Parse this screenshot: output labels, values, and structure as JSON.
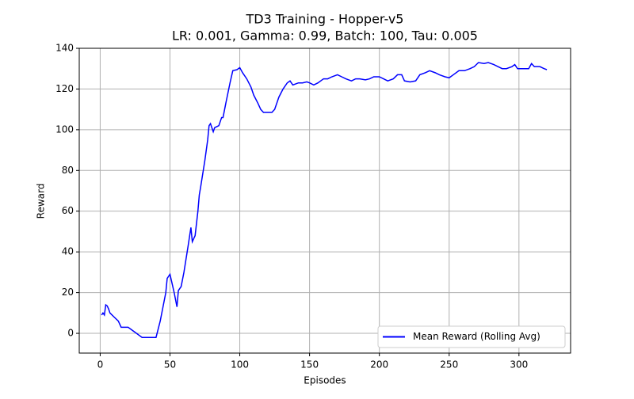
{
  "chart_data": {
    "type": "line",
    "title": "TD3 Training - Hopper-v5",
    "subtitle": "LR: 0.001, Gamma: 0.99, Batch: 100, Tau: 0.005",
    "x_label": "Episodes",
    "y_label": "Reward",
    "x": [
      1,
      2,
      3,
      4,
      5,
      6,
      7,
      10,
      13,
      15,
      20,
      25,
      30,
      35,
      40,
      43,
      47,
      48,
      50,
      53,
      55,
      56,
      58,
      60,
      63,
      65,
      66,
      68,
      70,
      71,
      72,
      75,
      77,
      78,
      79,
      81,
      82,
      85,
      87,
      88,
      90,
      93,
      95,
      98,
      100,
      102,
      105,
      108,
      110,
      113,
      115,
      117,
      120,
      123,
      125,
      128,
      131,
      134,
      136,
      138,
      142,
      145,
      148,
      150,
      153,
      156,
      160,
      163,
      166,
      170,
      173,
      176,
      180,
      183,
      186,
      190,
      193,
      196,
      200,
      203,
      206,
      210,
      213,
      216,
      218,
      222,
      226,
      229,
      233,
      236,
      240,
      243,
      247,
      250,
      253,
      257,
      261,
      265,
      268,
      271,
      275,
      278,
      282,
      285,
      288,
      291,
      295,
      297,
      299,
      303,
      307,
      309,
      311,
      315,
      318,
      320
    ],
    "series": [
      {
        "name": "Mean Reward (Rolling Avg)",
        "color": "#0000ff",
        "values": [
          9,
          10,
          9,
          14,
          13.5,
          12,
          10,
          8,
          6,
          3,
          3,
          0.5,
          -2,
          -2,
          -2,
          6,
          20,
          27,
          29,
          20,
          13,
          21,
          23,
          30,
          43,
          52,
          45,
          48,
          60,
          68,
          72,
          85,
          95,
          102,
          103,
          99,
          101,
          102,
          106,
          106,
          113,
          123,
          129,
          129.5,
          130.5,
          128,
          125,
          121,
          117,
          113,
          110,
          108.5,
          108.5,
          108.5,
          110,
          116,
          120,
          123,
          124,
          122,
          123,
          123,
          123.5,
          123,
          122,
          123,
          125,
          125,
          126,
          127,
          126,
          125,
          124,
          125,
          125,
          124.5,
          125,
          126,
          126,
          125,
          124,
          125,
          127,
          127,
          124,
          123.5,
          124,
          127,
          128,
          129,
          128,
          127,
          126,
          125.5,
          127,
          129,
          129,
          130,
          131,
          133,
          132.5,
          133,
          132,
          131,
          130,
          130,
          131,
          132,
          130,
          130,
          130,
          132.5,
          131,
          131,
          130,
          129.5
        ]
      }
    ],
    "xlim": [
      -15,
      337
    ],
    "ylim": [
      -9.7,
      140
    ],
    "xticks": [
      0,
      50,
      100,
      150,
      200,
      250,
      300
    ],
    "yticks": [
      0,
      20,
      40,
      60,
      80,
      100,
      120,
      140
    ],
    "grid": true,
    "legend": "lower right"
  }
}
